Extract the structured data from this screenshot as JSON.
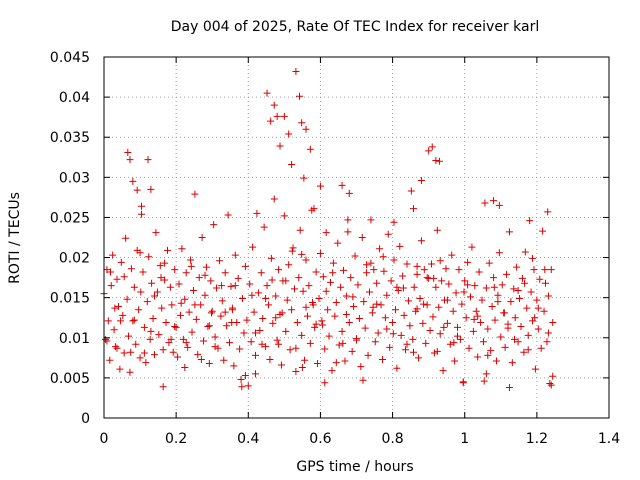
{
  "chart_data": {
    "type": "scatter",
    "title": "Day 004 of 2025, Rate Of TEC Index for receiver karl",
    "xlabel": "GPS time / hours",
    "ylabel": "ROTI / TECUs",
    "xlim": [
      0,
      1.4
    ],
    "ylim": [
      0,
      0.045
    ],
    "xticks": [
      0,
      0.2,
      0.4,
      0.6,
      0.8,
      1,
      1.2,
      1.4
    ],
    "xtick_labels": [
      "0",
      "0.2",
      "0.4",
      "0.6",
      "0.8",
      "1",
      "1.2",
      "1.4"
    ],
    "yticks": [
      0,
      0.005,
      0.01,
      0.015,
      0.02,
      0.025,
      0.03,
      0.035,
      0.04,
      0.045
    ],
    "ytick_labels": [
      "0",
      "0.005",
      "0.01",
      "0.015",
      "0.02",
      "0.025",
      "0.03",
      "0.035",
      "0.04",
      "0.045"
    ],
    "grid": true,
    "marker": "+",
    "color": "#dd0000",
    "series": [
      {
        "x": [
          0.0,
          0.004,
          0.008,
          0.012,
          0.016,
          0.02,
          0.024,
          0.028,
          0.032,
          0.036,
          0.04,
          0.044,
          0.048,
          0.052,
          0.056,
          0.06,
          0.064,
          0.068,
          0.072,
          0.076,
          0.08,
          0.084,
          0.088,
          0.092,
          0.096,
          0.1,
          0.104,
          0.108,
          0.112,
          0.116,
          0.12,
          0.124,
          0.128,
          0.132,
          0.136,
          0.14,
          0.144,
          0.148,
          0.152,
          0.156,
          0.16,
          0.164,
          0.168,
          0.172,
          0.176,
          0.18,
          0.184,
          0.188,
          0.192,
          0.196,
          0.2,
          0.204,
          0.208,
          0.212,
          0.216,
          0.22,
          0.224,
          0.228,
          0.232,
          0.236,
          0.24,
          0.244,
          0.248,
          0.252,
          0.256,
          0.26,
          0.264,
          0.268,
          0.272,
          0.276,
          0.28,
          0.284,
          0.288,
          0.292,
          0.296,
          0.3,
          0.304,
          0.308,
          0.312,
          0.316,
          0.32,
          0.324,
          0.328,
          0.332,
          0.336,
          0.34,
          0.344,
          0.348,
          0.352,
          0.356,
          0.36,
          0.364,
          0.368,
          0.372,
          0.376,
          0.38,
          0.384,
          0.388,
          0.392,
          0.396,
          0.4,
          0.404,
          0.408,
          0.412,
          0.416,
          0.42,
          0.424,
          0.428,
          0.432,
          0.436,
          0.44,
          0.444,
          0.448,
          0.452,
          0.456,
          0.46,
          0.464,
          0.468,
          0.472,
          0.476,
          0.48,
          0.484,
          0.488,
          0.492,
          0.496,
          0.5,
          0.504,
          0.508,
          0.512,
          0.516,
          0.52,
          0.524,
          0.528,
          0.532,
          0.536,
          0.54,
          0.544,
          0.548,
          0.552,
          0.556,
          0.56,
          0.564,
          0.568,
          0.572,
          0.576,
          0.58,
          0.584,
          0.588,
          0.592,
          0.596,
          0.6,
          0.604,
          0.608,
          0.612,
          0.616,
          0.62,
          0.624,
          0.628,
          0.632,
          0.636,
          0.64,
          0.644,
          0.648,
          0.652,
          0.656,
          0.66,
          0.664,
          0.668,
          0.672,
          0.676,
          0.68,
          0.684,
          0.688,
          0.692,
          0.696,
          0.7,
          0.704,
          0.708,
          0.712,
          0.716,
          0.72,
          0.724,
          0.728,
          0.732,
          0.736,
          0.74,
          0.744,
          0.748,
          0.752,
          0.756,
          0.76,
          0.764,
          0.768,
          0.772,
          0.776,
          0.78,
          0.784,
          0.788,
          0.792,
          0.796,
          0.8,
          0.804,
          0.808,
          0.812,
          0.816,
          0.82,
          0.824,
          0.828,
          0.832,
          0.836,
          0.84,
          0.844,
          0.848,
          0.852,
          0.856,
          0.86,
          0.864,
          0.868,
          0.872,
          0.876,
          0.88,
          0.884,
          0.888,
          0.892,
          0.896,
          0.9,
          0.904,
          0.908,
          0.912,
          0.916,
          0.92,
          0.924,
          0.928,
          0.932,
          0.936,
          0.94,
          0.944,
          0.948,
          0.952,
          0.956,
          0.96,
          0.964,
          0.968,
          0.972,
          0.976,
          0.98,
          0.984,
          0.988,
          0.992,
          0.996,
          1.0,
          1.004,
          1.008,
          1.012,
          1.016,
          1.02,
          1.024,
          1.028,
          1.032,
          1.036,
          1.04,
          1.044,
          1.048,
          1.052,
          1.056,
          1.06,
          1.064,
          1.068,
          1.072,
          1.076,
          1.08,
          1.084,
          1.088,
          1.092,
          1.096,
          1.1,
          1.104,
          1.108,
          1.112,
          1.116,
          1.12,
          1.124,
          1.128,
          1.132,
          1.136,
          1.14,
          1.144,
          1.148,
          1.152,
          1.156,
          1.16,
          1.164,
          1.168,
          1.172,
          1.176,
          1.18,
          1.184,
          1.188,
          1.192,
          1.196,
          1.2,
          1.204,
          1.208,
          1.212,
          1.216,
          1.22,
          1.224,
          1.228,
          1.232,
          1.236,
          1.24,
          1.244,
          0.066,
          0.072,
          0.08,
          0.092,
          0.104,
          0.122,
          0.13,
          0.452,
          0.462,
          0.472,
          0.48,
          0.488,
          0.5,
          0.512,
          0.52,
          0.532,
          0.542,
          0.548,
          0.554,
          0.56,
          0.572,
          0.582,
          0.6,
          0.66,
          0.68,
          0.858,
          0.88,
          0.9,
          0.91,
          0.92,
          0.93,
          1.08,
          1.096,
          1.23,
          0.008,
          0.03,
          0.056,
          0.084,
          0.112,
          0.14,
          0.168,
          0.196,
          0.224,
          0.252,
          0.28,
          0.308,
          0.336,
          0.364,
          0.392,
          0.42,
          0.448,
          0.476,
          0.504,
          0.532,
          0.56,
          0.588,
          0.616,
          0.644,
          0.672,
          0.7,
          0.728,
          0.756,
          0.784,
          0.812,
          0.84,
          0.868,
          0.896,
          0.924,
          0.952,
          0.98,
          1.008,
          1.036,
          1.064,
          1.092,
          1.12,
          1.148,
          1.176,
          1.204,
          1.232,
          0.018,
          0.046,
          0.074,
          0.102,
          0.13,
          0.158,
          0.186,
          0.214,
          0.242,
          0.27,
          0.298,
          0.326,
          0.354,
          0.382,
          0.41,
          0.438,
          0.466,
          0.494,
          0.522,
          0.55,
          0.578,
          0.606,
          0.634,
          0.662,
          0.69,
          0.718,
          0.746,
          0.774,
          0.802,
          0.83,
          0.858,
          0.886,
          0.914,
          0.942,
          0.97,
          0.998,
          1.026,
          1.054,
          1.082,
          1.11,
          1.138,
          1.166,
          1.194,
          1.222,
          1.244,
          0.036,
          0.1,
          0.164,
          0.228,
          0.292,
          0.356,
          0.42,
          0.484,
          0.548,
          0.612,
          0.676,
          0.74,
          0.804,
          0.868,
          0.932,
          0.996,
          1.06,
          1.124,
          1.188,
          1.24
        ],
        "y": [
          0.0155,
          0.0098,
          0.0185,
          0.0121,
          0.0072,
          0.0165,
          0.0203,
          0.011,
          0.0089,
          0.0173,
          0.0139,
          0.0061,
          0.0194,
          0.0128,
          0.0081,
          0.0224,
          0.0148,
          0.0102,
          0.0057,
          0.0186,
          0.0121,
          0.0163,
          0.0092,
          0.0209,
          0.0135,
          0.0075,
          0.0254,
          0.0182,
          0.0113,
          0.0069,
          0.0145,
          0.0201,
          0.0098,
          0.0168,
          0.0124,
          0.0079,
          0.0231,
          0.0157,
          0.0104,
          0.019,
          0.0137,
          0.0085,
          0.0172,
          0.0119,
          0.0209,
          0.0094,
          0.0163,
          0.0141,
          0.0082,
          0.0185,
          0.0113,
          0.0076,
          0.0167,
          0.0128,
          0.0211,
          0.0098,
          0.0148,
          0.0181,
          0.0088,
          0.0132,
          0.0197,
          0.0107,
          0.0159,
          0.0279,
          0.0123,
          0.0079,
          0.0175,
          0.0141,
          0.0225,
          0.0096,
          0.0153,
          0.0188,
          0.0114,
          0.0068,
          0.0171,
          0.0133,
          0.0241,
          0.0101,
          0.0162,
          0.0087,
          0.0196,
          0.0127,
          0.0146,
          0.0072,
          0.0181,
          0.0115,
          0.0253,
          0.0094,
          0.0164,
          0.0137,
          0.0065,
          0.0203,
          0.0119,
          0.0174,
          0.0086,
          0.0048,
          0.0149,
          0.0106,
          0.0189,
          0.0122,
          0.004,
          0.0167,
          0.0095,
          0.0213,
          0.0132,
          0.0078,
          0.0255,
          0.0156,
          0.0109,
          0.0181,
          0.0124,
          0.0238,
          0.0089,
          0.0165,
          0.0141,
          0.0073,
          0.0199,
          0.0118,
          0.0273,
          0.0152,
          0.0097,
          0.0185,
          0.0129,
          0.0066,
          0.0171,
          0.0252,
          0.0108,
          0.0147,
          0.0191,
          0.0085,
          0.0135,
          0.0212,
          0.0161,
          0.0058,
          0.0119,
          0.0175,
          0.0234,
          0.0103,
          0.0158,
          0.0072,
          0.0197,
          0.0127,
          0.0165,
          0.0093,
          0.0259,
          0.0141,
          0.0113,
          0.0182,
          0.0068,
          0.0149,
          0.0205,
          0.0121,
          0.0176,
          0.0086,
          0.0231,
          0.0135,
          0.0102,
          0.0169,
          0.0059,
          0.0193,
          0.0127,
          0.0144,
          0.0218,
          0.0091,
          0.0163,
          0.0108,
          0.0184,
          0.0071,
          0.0152,
          0.0247,
          0.0119,
          0.0175,
          0.0083,
          0.0139,
          0.0202,
          0.0097,
          0.0166,
          0.0124,
          0.0064,
          0.0225,
          0.0145,
          0.0112,
          0.0191,
          0.0078,
          0.0157,
          0.0247,
          0.0131,
          0.0185,
          0.0095,
          0.0168,
          0.0106,
          0.0211,
          0.0141,
          0.0073,
          0.0183,
          0.0125,
          0.0153,
          0.0229,
          0.0088,
          0.0171,
          0.0119,
          0.0197,
          0.0135,
          0.0062,
          0.0159,
          0.0214,
          0.0103,
          0.0177,
          0.0128,
          0.0085,
          0.0192,
          0.0146,
          0.0115,
          0.0283,
          0.0098,
          0.0163,
          0.0133,
          0.0179,
          0.0075,
          0.0149,
          0.0221,
          0.0118,
          0.0185,
          0.0093,
          0.0141,
          0.0174,
          0.0109,
          0.0192,
          0.0126,
          0.0081,
          0.0163,
          0.0234,
          0.0138,
          0.0105,
          0.0171,
          0.0059,
          0.0147,
          0.0186,
          0.0118,
          0.0167,
          0.0092,
          0.0203,
          0.0133,
          0.0071,
          0.0156,
          0.0113,
          0.0185,
          0.0098,
          0.0142,
          0.0045,
          0.0171,
          0.0125,
          0.0194,
          0.0087,
          0.0151,
          0.0213,
          0.0108,
          0.0165,
          0.0133,
          0.0076,
          0.0182,
          0.0119,
          0.0147,
          0.0095,
          0.0268,
          0.0162,
          0.0111,
          0.0193,
          0.0084,
          0.0139,
          0.0175,
          0.0122,
          0.0071,
          0.0153,
          0.0206,
          0.0101,
          0.0166,
          0.0131,
          0.0088,
          0.0179,
          0.0117,
          0.0232,
          0.0145,
          0.0069,
          0.0161,
          0.0125,
          0.0188,
          0.0095,
          0.0149,
          0.0114,
          0.0174,
          0.0082,
          0.0207,
          0.0137,
          0.0103,
          0.0246,
          0.0157,
          0.0121,
          0.0185,
          0.0061,
          0.0147,
          0.0111,
          0.0173,
          0.0087,
          0.0233,
          0.0133,
          0.0168,
          0.0095,
          0.0152,
          0.0043,
          0.0185,
          0.0119,
          0.0331,
          0.0322,
          0.0295,
          0.0284,
          0.0264,
          0.0322,
          0.0285,
          0.0405,
          0.037,
          0.039,
          0.0376,
          0.0339,
          0.0376,
          0.0354,
          0.0316,
          0.0432,
          0.0401,
          0.0368,
          0.0299,
          0.036,
          0.0335,
          0.0261,
          0.0289,
          0.029,
          0.028,
          0.0261,
          0.0296,
          0.0333,
          0.0338,
          0.0321,
          0.032,
          0.0271,
          0.0265,
          0.0257,
          0.0096,
          0.0137,
          0.0176,
          0.0122,
          0.0081,
          0.0152,
          0.0193,
          0.0114,
          0.0063,
          0.0141,
          0.0178,
          0.0089,
          0.0132,
          0.0165,
          0.0053,
          0.0106,
          0.0149,
          0.0125,
          0.0171,
          0.0087,
          0.0138,
          0.0117,
          0.0158,
          0.0069,
          0.0129,
          0.0099,
          0.0181,
          0.0142,
          0.0111,
          0.0163,
          0.0092,
          0.0136,
          0.0175,
          0.0083,
          0.0147,
          0.0102,
          0.0166,
          0.0127,
          0.0078,
          0.0145,
          0.0112,
          0.0159,
          0.0085,
          0.0137,
          0.0106,
          0.0182,
          0.0121,
          0.0082,
          0.0157,
          0.0108,
          0.0175,
          0.0098,
          0.0143,
          0.0189,
          0.0073,
          0.0131,
          0.0165,
          0.0119,
          0.0039,
          0.0153,
          0.0092,
          0.0172,
          0.0131,
          0.0208,
          0.0063,
          0.0144,
          0.0116,
          0.0181,
          0.0093,
          0.0151,
          0.0047,
          0.0138,
          0.0201,
          0.0105,
          0.0162,
          0.0082,
          0.0142,
          0.0174,
          0.0113,
          0.0094,
          0.0157,
          0.0123,
          0.0046,
          0.0163,
          0.0131,
          0.0098,
          0.0168,
          0.0125,
          0.0185,
          0.0052,
          0.0087,
          0.0206,
          0.0039,
          0.0094,
          0.0115,
          0.0135,
          0.0055,
          0.0092,
          0.0204,
          0.0044,
          0.0232,
          0.0193,
          0.0244,
          0.0189,
          0.0196,
          0.0044,
          0.0055,
          0.0038,
          0.0199,
          0.0041
        ]
      }
    ]
  }
}
